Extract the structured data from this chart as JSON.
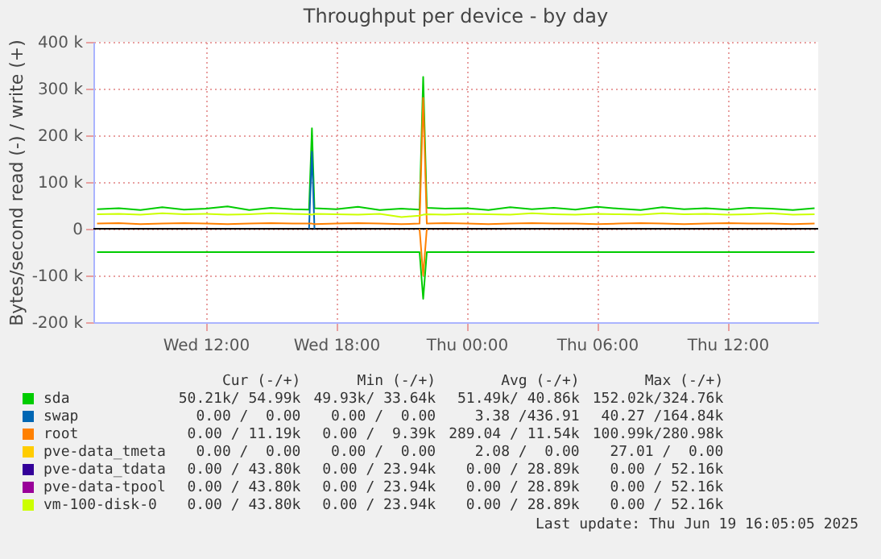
{
  "chart_data": {
    "type": "line",
    "title": "Throughput per device - by day",
    "ylabel": "Bytes/second read (-) / write (+)",
    "x": [
      "2025-06-18T07:00",
      "2025-06-18T08:00",
      "2025-06-18T09:00",
      "2025-06-18T10:00",
      "2025-06-18T11:00",
      "2025-06-18T12:00",
      "2025-06-18T13:00",
      "2025-06-18T14:00",
      "2025-06-18T15:00",
      "2025-06-18T16:00",
      "2025-06-18T16:45",
      "2025-06-18T16:53",
      "2025-06-18T17:00",
      "2025-06-18T18:00",
      "2025-06-18T19:00",
      "2025-06-18T20:00",
      "2025-06-18T21:00",
      "2025-06-18T21:50",
      "2025-06-18T22:00",
      "2025-06-18T22:10",
      "2025-06-18T23:00",
      "2025-06-19T00:00",
      "2025-06-19T01:00",
      "2025-06-19T02:00",
      "2025-06-19T03:00",
      "2025-06-19T04:00",
      "2025-06-19T05:00",
      "2025-06-19T06:00",
      "2025-06-19T07:00",
      "2025-06-19T08:00",
      "2025-06-19T09:00",
      "2025-06-19T10:00",
      "2025-06-19T11:00",
      "2025-06-19T12:00",
      "2025-06-19T13:00",
      "2025-06-19T14:00",
      "2025-06-19T15:00",
      "2025-06-19T16:00"
    ],
    "series": [
      {
        "name": "sda",
        "color": "#00cc00",
        "values": [
          42000,
          44000,
          40000,
          46000,
          41000,
          43000,
          48000,
          40000,
          45000,
          42000,
          41000,
          215000,
          44000,
          42000,
          47000,
          40000,
          43000,
          41000,
          325000,
          45000,
          43000,
          44000,
          40000,
          46000,
          42000,
          45000,
          41000,
          47000,
          43000,
          40000,
          46000,
          42000,
          44000,
          41000,
          45000,
          43000,
          40000,
          44000
        ]
      },
      {
        "color": "#00cc00",
        "values": [
          -50000,
          -50000,
          -50000,
          -50000,
          -50000,
          -50000,
          -50000,
          -50000,
          -50000,
          -50000,
          -50000,
          -50000,
          -50000,
          -50000,
          -50000,
          -50000,
          -50000,
          -50000,
          -150000,
          -50000,
          -50000,
          -50000,
          -50000,
          -50000,
          -50000,
          -50000,
          -50000,
          -50000,
          -50000,
          -50000,
          -50000,
          -50000,
          -50000,
          -50000,
          -50000,
          -50000,
          -50000,
          -50000
        ]
      },
      {
        "name": "swap",
        "color": "#0066b3",
        "values": [
          null,
          null,
          null,
          null,
          null,
          null,
          null,
          null,
          null,
          null,
          0,
          165000,
          0,
          null,
          null,
          null,
          null,
          null,
          null,
          null,
          null,
          null,
          null,
          null,
          null,
          null,
          null,
          null,
          null,
          null,
          null,
          null,
          null,
          null,
          null,
          null,
          null,
          null
        ]
      },
      {
        "name": "root",
        "color": "#ff8000",
        "values": [
          11000,
          12000,
          10000,
          11000,
          12000,
          11000,
          10000,
          11000,
          12000,
          11000,
          11000,
          11000,
          10000,
          11000,
          12000,
          11000,
          10000,
          11000,
          280000,
          11000,
          12000,
          11000,
          10000,
          11000,
          12000,
          11000,
          11000,
          10000,
          11000,
          12000,
          11000,
          10000,
          11000,
          12000,
          11000,
          11000,
          10000,
          11000
        ]
      },
      {
        "color": "#ff8000",
        "values": [
          null,
          null,
          null,
          null,
          null,
          null,
          null,
          null,
          null,
          null,
          null,
          null,
          null,
          null,
          null,
          null,
          null,
          0,
          -100000,
          0,
          null,
          null,
          null,
          null,
          null,
          null,
          null,
          null,
          null,
          null,
          null,
          null,
          null,
          null,
          null,
          null,
          null,
          null
        ]
      },
      {
        "name": "pve-data_tmeta",
        "color": "#ffcc00",
        "values": [
          null,
          null,
          null,
          null,
          null,
          null,
          null,
          null,
          null,
          null,
          null,
          null,
          null,
          null,
          null,
          null,
          null,
          null,
          null,
          null,
          null,
          null,
          null,
          null,
          null,
          null,
          null,
          null,
          null,
          null,
          null,
          null,
          null,
          null,
          null,
          null,
          null,
          null
        ]
      },
      {
        "name": "pve-data_tdata",
        "color": "#330099",
        "values": [
          null,
          null,
          null,
          null,
          null,
          null,
          null,
          null,
          null,
          null,
          null,
          null,
          null,
          null,
          null,
          null,
          null,
          null,
          null,
          null,
          null,
          null,
          null,
          null,
          null,
          null,
          null,
          null,
          null,
          null,
          null,
          null,
          null,
          null,
          null,
          null,
          null,
          null
        ]
      },
      {
        "name": "pve-data-tpool",
        "color": "#990099",
        "values": [
          null,
          null,
          null,
          null,
          null,
          null,
          null,
          null,
          null,
          null,
          null,
          null,
          null,
          null,
          null,
          null,
          null,
          null,
          null,
          null,
          null,
          null,
          null,
          null,
          null,
          null,
          null,
          null,
          null,
          null,
          null,
          null,
          null,
          null,
          null,
          null,
          null,
          null
        ]
      },
      {
        "name": "vm-100-disk-0",
        "color": "#ccff00",
        "values": [
          31000,
          32000,
          30000,
          33000,
          31000,
          32000,
          30000,
          31000,
          33000,
          32000,
          31000,
          30000,
          32000,
          31000,
          30000,
          32000,
          25000,
          28000,
          30000,
          31000,
          30000,
          32000,
          31000,
          30000,
          33000,
          31000,
          30000,
          32000,
          31000,
          30000,
          33000,
          31000,
          32000,
          30000,
          31000,
          33000,
          30000,
          31000
        ]
      }
    ],
    "xlim": [
      "2025-06-18T06:50",
      "2025-06-19T16:10"
    ],
    "xticks": [
      {
        "value": "2025-06-18T12:00",
        "label": "Wed 12:00"
      },
      {
        "value": "2025-06-18T18:00",
        "label": "Wed 18:00"
      },
      {
        "value": "2025-06-19T00:00",
        "label": "Thu 00:00"
      },
      {
        "value": "2025-06-19T06:00",
        "label": "Thu 06:00"
      },
      {
        "value": "2025-06-19T12:00",
        "label": "Thu 12:00"
      }
    ],
    "ylim": [
      -200000,
      400000
    ],
    "yticks": [
      {
        "value": -200000,
        "label": "-200 k"
      },
      {
        "value": -100000,
        "label": "-100 k"
      },
      {
        "value": 0,
        "label": "0"
      },
      {
        "value": 100000,
        "label": "100 k"
      },
      {
        "value": 200000,
        "label": "200 k"
      },
      {
        "value": 300000,
        "label": "300 k"
      },
      {
        "value": 400000,
        "label": "400 k"
      }
    ],
    "grid": true,
    "legend": "bottom",
    "annotations": [
      "Cur (-/+)",
      "Min (-/+)",
      "Avg (-/+)",
      "Max (-/+)",
      "50.21k/ 54.99k",
      "49.93k/ 33.64k",
      "51.49k/ 40.86k",
      "152.02k/324.76k",
      "0.00 /  0.00",
      "0.00 /  0.00",
      "3.38 /436.91",
      "40.27 /164.84k",
      "0.00 / 11.19k",
      "0.00 /  9.39k",
      "289.04 / 11.54k",
      "100.99k/280.98k",
      "0.00 /  0.00",
      "0.00 /  0.00",
      "2.08 /  0.00",
      "27.01 /  0.00",
      "0.00 / 43.80k",
      "0.00 / 23.94k",
      "0.00 / 28.89k",
      "0.00 / 52.16k",
      "0.00 / 43.80k",
      "0.00 / 23.94k",
      "0.00 / 28.89k",
      "0.00 / 52.16k",
      "0.00 / 43.80k",
      "0.00 / 23.94k",
      "0.00 / 28.89k",
      "0.00 / 52.16k",
      "Last update: Thu Jun 19 16:05:05 2025"
    ]
  }
}
